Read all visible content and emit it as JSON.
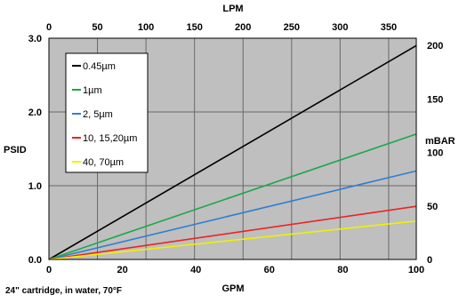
{
  "chart_data": {
    "type": "line",
    "primary_x_axis": {
      "label": "GPM",
      "range": [
        0,
        100
      ],
      "ticks": [
        "0",
        "20",
        "40",
        "60",
        "80",
        "100"
      ]
    },
    "secondary_x_axis": {
      "label": "LPM",
      "range": [
        0,
        378.5
      ],
      "ticks": [
        "0",
        "50",
        "100",
        "150",
        "200",
        "250",
        "300",
        "350"
      ]
    },
    "primary_y_axis": {
      "label": "PSID",
      "range": [
        0,
        3
      ],
      "ticks": [
        "0.0",
        "1.0",
        "2.0",
        "3.0"
      ]
    },
    "secondary_y_axis": {
      "label": "mBAR",
      "range": [
        0,
        206.8
      ],
      "ticks": [
        "0",
        "50",
        "100",
        "150",
        "200"
      ]
    },
    "grid": true,
    "plot_background": "#bfbfbf",
    "legend_position": "top-left",
    "series": [
      {
        "name": "0.45µm",
        "color": "#000000",
        "x": [
          0,
          100
        ],
        "y": [
          0,
          2.9
        ]
      },
      {
        "name": "1µm",
        "color": "#1aa84a",
        "x": [
          0,
          100
        ],
        "y": [
          0,
          1.7
        ]
      },
      {
        "name": "2, 5µm",
        "color": "#2f7fd0",
        "x": [
          0,
          100
        ],
        "y": [
          0,
          1.2
        ]
      },
      {
        "name": "10, 15,20µm",
        "color": "#ee2222",
        "x": [
          0,
          100
        ],
        "y": [
          0,
          0.72
        ]
      },
      {
        "name": "40, 70µm",
        "color": "#f0f000",
        "x": [
          0,
          100
        ],
        "y": [
          0,
          0.52
        ]
      }
    ],
    "footnote": "24\" cartridge, in water, 70°F"
  }
}
